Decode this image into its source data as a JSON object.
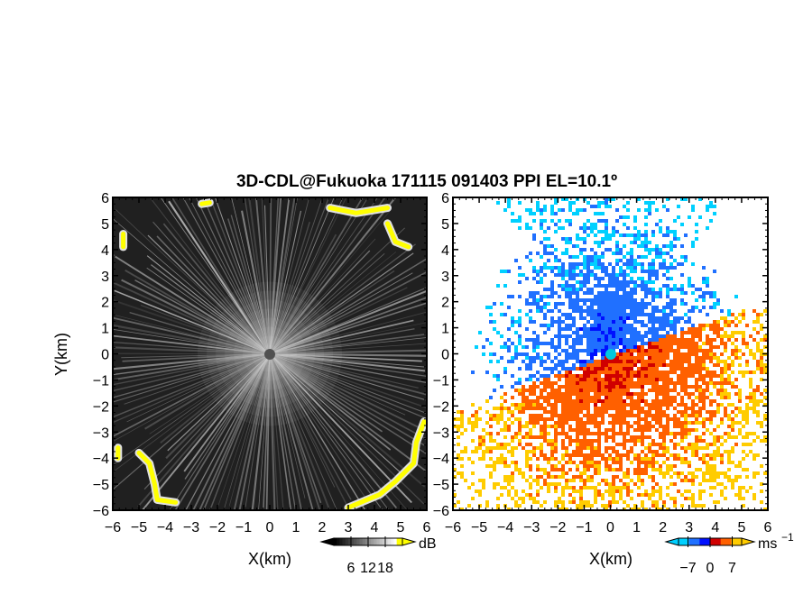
{
  "title": "3D-CDL@Fukuoka 171115 091403 PPI EL=10.1º",
  "chart_data": [
    {
      "type": "heatmap",
      "name": "reflectivity-ppi",
      "xlabel": "X(km)",
      "ylabel": "Y(km)",
      "xlim": [
        -6,
        6
      ],
      "ylim": [
        -6,
        6
      ],
      "x_ticks": [
        "−6",
        "−5",
        "−4",
        "−3",
        "−2",
        "−1",
        "0",
        "1",
        "2",
        "3",
        "4",
        "5",
        "6"
      ],
      "y_ticks": [
        "−6",
        "−5",
        "−4",
        "−3",
        "−2",
        "−1",
        "0",
        "1",
        "2",
        "3",
        "4",
        "5",
        "6"
      ],
      "colorbar": {
        "unit": "dB",
        "ticks": [
          "6",
          "12",
          "18"
        ],
        "tick_values": [
          6,
          12,
          18
        ],
        "range": [
          0,
          24
        ],
        "colors": [
          "#000000",
          "#808080",
          "#ffffff",
          "#ffff00"
        ]
      },
      "yellow_echo_arcs": [
        [
          [
            -2.6,
            5.75
          ],
          [
            -2.3,
            5.8
          ]
        ],
        [
          [
            2.3,
            5.6
          ],
          [
            3.3,
            5.4
          ],
          [
            4.5,
            5.6
          ]
        ],
        [
          [
            4.5,
            5.0
          ],
          [
            4.8,
            4.3
          ],
          [
            5.3,
            4.1
          ]
        ],
        [
          [
            -5.6,
            4.6
          ],
          [
            -5.6,
            4.1
          ]
        ],
        [
          [
            -5.8,
            -3.6
          ],
          [
            -5.8,
            -4.0
          ]
        ],
        [
          [
            -5.0,
            -3.8
          ],
          [
            -4.6,
            -4.2
          ],
          [
            -4.4,
            -5.0
          ],
          [
            -4.3,
            -5.6
          ],
          [
            -3.6,
            -5.7
          ]
        ],
        [
          [
            5.9,
            -2.6
          ],
          [
            5.6,
            -3.4
          ],
          [
            5.5,
            -4.2
          ],
          [
            4.8,
            -4.9
          ],
          [
            4.2,
            -5.4
          ],
          [
            3.0,
            -5.9
          ]
        ]
      ],
      "colormap": "gray-to-yellow"
    },
    {
      "type": "heatmap",
      "name": "doppler-velocity-ppi",
      "xlabel": "X(km)",
      "xlim": [
        -6,
        6
      ],
      "ylim": [
        -6,
        6
      ],
      "x_ticks": [
        "−6",
        "−5",
        "−4",
        "−3",
        "−2",
        "−1",
        "0",
        "1",
        "2",
        "3",
        "4",
        "5",
        "6"
      ],
      "y_ticks": [
        "−6",
        "−5",
        "−4",
        "−3",
        "−2",
        "−1",
        "0",
        "1",
        "2",
        "3",
        "4",
        "5",
        "6"
      ],
      "colorbar": {
        "unit": "ms",
        "unit_exp": "−1",
        "ticks": [
          "−7",
          "0",
          "7"
        ],
        "tick_values": [
          -7,
          0,
          7
        ],
        "range": [
          -10,
          10
        ],
        "colors": [
          "#00d0ff",
          "#2070ff",
          "#0010ff",
          "#d00000",
          "#ff6000",
          "#ffcc00"
        ]
      },
      "approach_color": "#1060ff",
      "recede_color": "#ffa000",
      "colormap": "cyan-blue-red-yellow"
    }
  ]
}
